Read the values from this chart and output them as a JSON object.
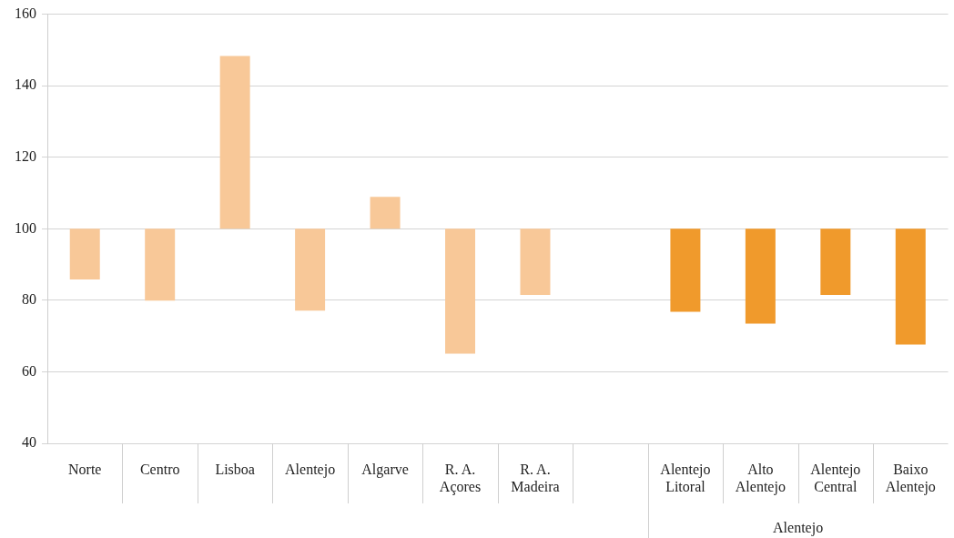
{
  "chart_data": {
    "type": "bar",
    "categories": [
      "Norte",
      "Centro",
      "Lisboa",
      "Alentejo",
      "Algarve",
      "R. A. Açores",
      "R. A. Madeira",
      null,
      "Alentejo Litoral",
      "Alto Alentejo",
      "Alentejo Central",
      "Baixo Alentejo"
    ],
    "base": [
      100,
      100,
      100,
      100,
      100,
      100,
      100,
      null,
      100,
      100,
      100,
      100
    ],
    "values": [
      -14.2,
      -20.1,
      48.3,
      -22.9,
      8.9,
      -34.9,
      -18.5,
      null,
      -23.2,
      -26.5,
      -18.5,
      -32.4
    ],
    "colors": [
      "#f8c898",
      "#f8c898",
      "#f8c898",
      "#f8c898",
      "#f8c898",
      "#f8c898",
      "#f8c898",
      "#f8c898",
      "#f09a2c",
      "#f09a2c",
      "#f09a2c",
      "#f09a2c"
    ],
    "ylim": [
      40,
      160
    ],
    "yticks": [
      40,
      60,
      80,
      100,
      120,
      140,
      160
    ],
    "grid": "y",
    "legend": false,
    "annotations": [
      "Alentejo"
    ]
  }
}
